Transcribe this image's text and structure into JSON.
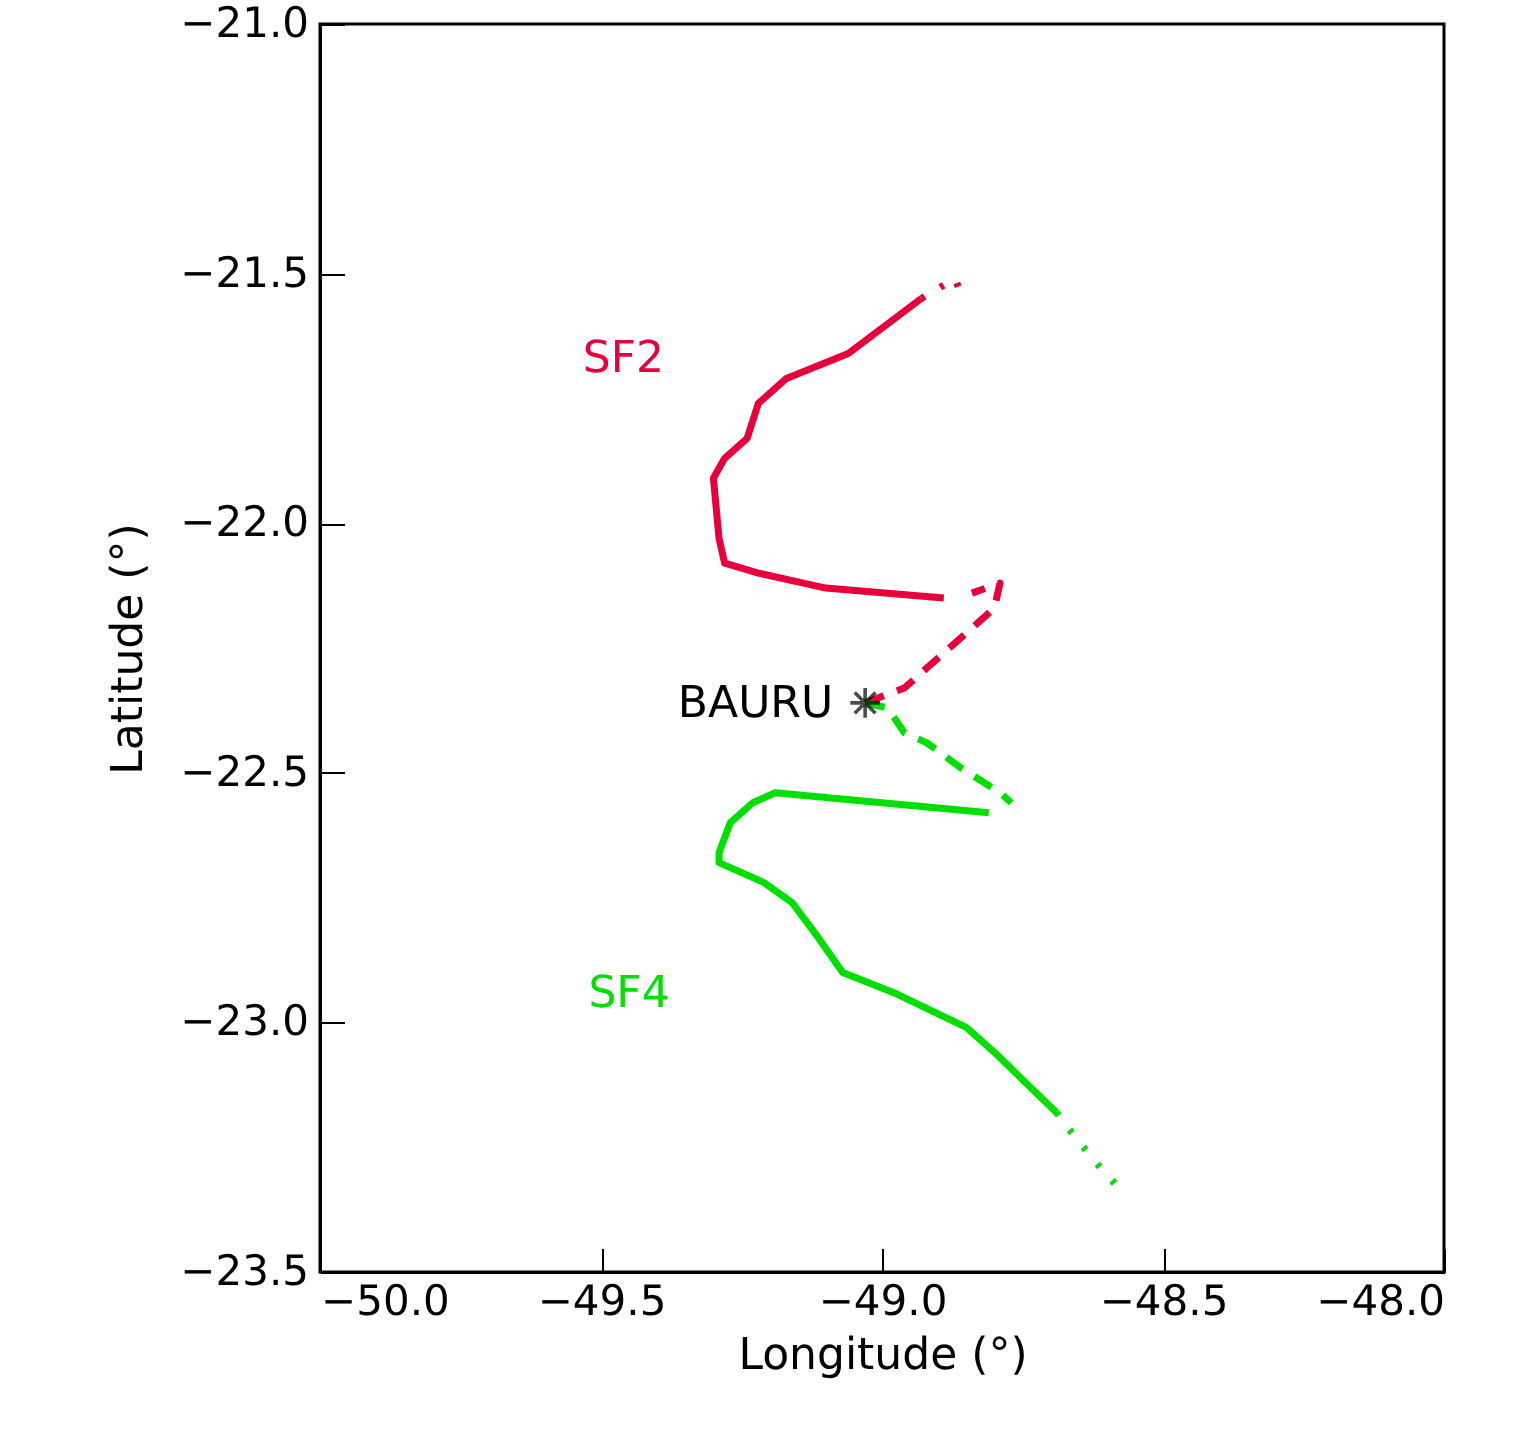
{
  "chart_data": {
    "type": "line",
    "xlabel": "Longitude (°)",
    "ylabel": "Latitude (°)",
    "xlim": [
      -50,
      -48
    ],
    "ylim": [
      -23.5,
      -21.0
    ],
    "xticks": [
      {
        "value": -50,
        "label": "−50.0"
      },
      {
        "value": -49.5,
        "label": "−49.5"
      },
      {
        "value": -49,
        "label": "−49.0"
      },
      {
        "value": -48.5,
        "label": "−48.5"
      },
      {
        "value": -48,
        "label": "−48.0"
      }
    ],
    "yticks": [
      {
        "value": -23.5,
        "label": "−23.5"
      },
      {
        "value": -23,
        "label": "−23.0"
      },
      {
        "value": -22.5,
        "label": "−22.5"
      },
      {
        "value": -22,
        "label": "−22.0"
      },
      {
        "value": -21.5,
        "label": "−21.5"
      },
      {
        "value": -21,
        "label": "−21.0"
      }
    ],
    "grid": false,
    "series": [
      {
        "color": "#e8003c",
        "line_style": "dashed",
        "x": [
          -49.03,
          -48.96,
          -48.8,
          -48.79,
          -48.84
        ],
        "values": [
          -22.36,
          -22.33,
          -22.17,
          -22.12,
          -22.14
        ]
      },
      {
        "name": "SF2",
        "color": "#e8003c",
        "line_style": "solid",
        "x": [
          -48.89,
          -49.1,
          -49.22,
          -49.28,
          -49.29,
          -49.3,
          -49.28,
          -49.24,
          -49.22,
          -49.17,
          -49.06,
          -48.93
        ],
        "values": [
          -22.15,
          -22.13,
          -22.1,
          -22.08,
          -22.03,
          -21.91,
          -21.87,
          -21.83,
          -21.76,
          -21.71,
          -21.66,
          -21.55
        ]
      },
      {
        "color": "#e8003c",
        "line_style": "dotted",
        "x": [
          -48.93,
          -48.9,
          -48.87,
          -48.86
        ],
        "values": [
          -21.55,
          -21.53,
          -21.51,
          -21.54
        ]
      },
      {
        "color": "#00e000",
        "line_style": "dashed",
        "x": [
          -49.03,
          -48.99,
          -48.96,
          -48.92,
          -48.86,
          -48.79,
          -48.77
        ],
        "values": [
          -22.36,
          -22.37,
          -22.42,
          -22.44,
          -22.49,
          -22.54,
          -22.56
        ]
      },
      {
        "name": "SF4",
        "color": "#00e000",
        "line_style": "solid",
        "x": [
          -48.81,
          -49.19,
          -49.23,
          -49.27,
          -49.29,
          -49.29,
          -49.21,
          -49.16,
          -49.12,
          -49.07,
          -48.98,
          -48.85,
          -48.8,
          -48.69
        ],
        "values": [
          -22.58,
          -22.54,
          -22.56,
          -22.6,
          -22.66,
          -22.68,
          -22.72,
          -22.76,
          -22.82,
          -22.9,
          -22.94,
          -23.01,
          -23.06,
          -23.18
        ]
      },
      {
        "color": "#00e000",
        "line_style": "dotted",
        "x": [
          -48.69,
          -48.67,
          -48.62,
          -48.58
        ],
        "values": [
          -23.18,
          -23.21,
          -23.28,
          -23.33
        ]
      },
      {
        "name": "BAURU",
        "type": "scatter",
        "marker": "cross",
        "color": "#000000",
        "x": [
          -49.03
        ],
        "values": [
          -22.36
        ]
      }
    ]
  }
}
